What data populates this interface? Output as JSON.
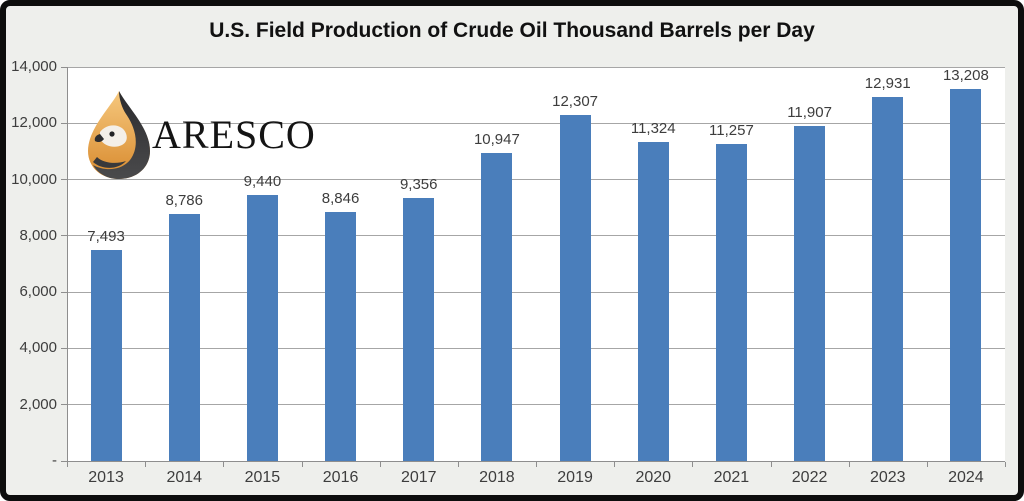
{
  "title": "U.S. Field Production of Crude Oil Thousand Barrels per Day",
  "logo": {
    "text": "ARESCO",
    "drop_orange_light": "#f2b968",
    "drop_orange_dark": "#d88a2e",
    "drop_dark": "#39393b"
  },
  "chart_data": {
    "type": "bar",
    "title": "U.S. Field Production of Crude Oil Thousand Barrels per Day",
    "categories": [
      "2013",
      "2014",
      "2015",
      "2016",
      "2017",
      "2018",
      "2019",
      "2020",
      "2021",
      "2022",
      "2023",
      "2024"
    ],
    "values": [
      7493,
      8786,
      9440,
      8846,
      9356,
      10947,
      12307,
      11324,
      11257,
      11907,
      12931,
      13208
    ],
    "value_labels": [
      "7,493",
      "8,786",
      "9,440",
      "8,846",
      "9,356",
      "10,947",
      "12,307",
      "11,324",
      "11,257",
      "11,907",
      "12,931",
      "13,208"
    ],
    "xlabel": "",
    "ylabel": "",
    "ylim": [
      0,
      14000
    ],
    "ytick_interval": 2000,
    "ytick_labels_top_to_bottom": [
      "14,000",
      "12,000",
      "10,000",
      "8,000",
      "6,000",
      "4,000",
      "2,000",
      "-"
    ],
    "grid": true,
    "legend": "none",
    "bar_color": "#4a7ebb",
    "gridline_color": "#a6a6a6",
    "axis_color": "#8e8e8e",
    "text_color": "#3d3d3d",
    "plot_background": "#ffffff",
    "chart_background": "#eeefec"
  }
}
